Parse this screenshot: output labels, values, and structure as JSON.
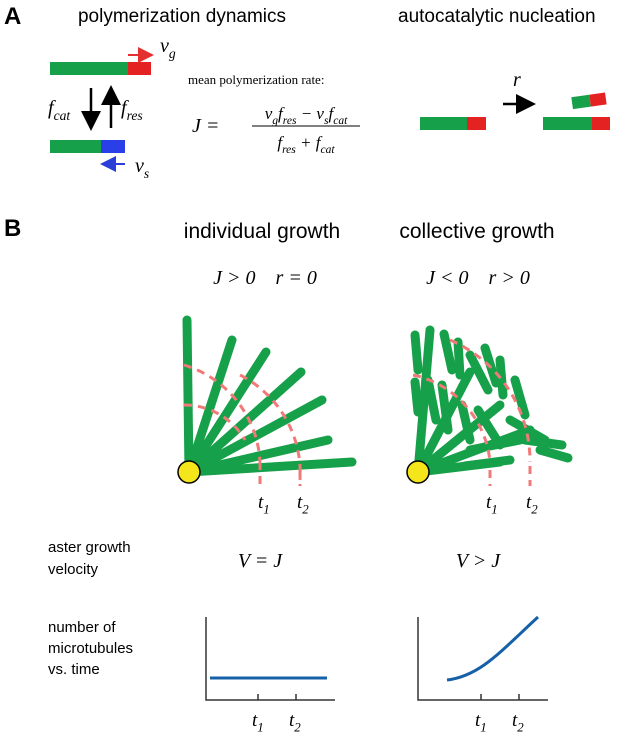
{
  "panel_a": {
    "label": "A",
    "title_left": "polymerization dynamics",
    "title_right": "autocatalytic nucleation",
    "vg": [
      [
        "v",
        "g"
      ]
    ],
    "vs": [
      [
        "v",
        "s"
      ]
    ],
    "fcat": [
      [
        "f",
        "cat"
      ]
    ],
    "fres": [
      [
        "f",
        "res"
      ]
    ],
    "r": [
      [
        "r"
      ]
    ],
    "rate_caption": "mean polymerization rate:",
    "equation": {
      "lhs": [
        [
          "J ="
        ]
      ],
      "numerator": [
        [
          "v",
          "g"
        ],
        [
          "f",
          "res"
        ],
        [
          " − v",
          "s"
        ],
        [
          "f",
          "cat"
        ]
      ],
      "denominator": [
        [
          "f",
          "res"
        ],
        [
          " + f",
          "cat"
        ]
      ]
    }
  },
  "panel_b": {
    "label": "B",
    "title_left": "individual growth",
    "title_right": "collective growth",
    "cond_left": [
      [
        "J > 0    r = 0"
      ]
    ],
    "cond_right": [
      [
        "J < 0    r > 0"
      ]
    ],
    "t1": [
      [
        "t",
        "1"
      ]
    ],
    "t2": [
      [
        "t",
        "2"
      ]
    ],
    "row1_label": [
      "aster growth",
      "velocity"
    ],
    "v_left": [
      [
        "V = J"
      ]
    ],
    "v_right": [
      [
        "V > J"
      ]
    ],
    "row2_label": [
      "number of",
      "microtubules",
      "vs. time"
    ]
  }
}
